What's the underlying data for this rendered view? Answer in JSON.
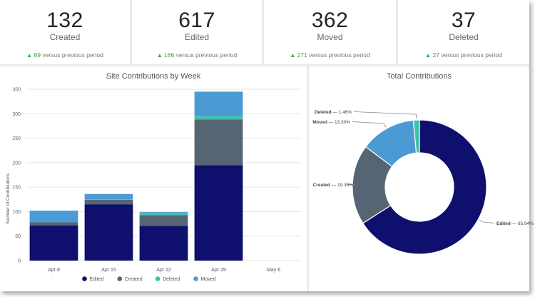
{
  "kpis": [
    {
      "value": "132",
      "label": "Created",
      "delta_value": "89",
      "delta_text": "versus previous period"
    },
    {
      "value": "617",
      "label": "Edited",
      "delta_value": "166",
      "delta_text": "versus previous period"
    },
    {
      "value": "362",
      "label": "Moved",
      "delta_value": "271",
      "delta_text": "versus previous period"
    },
    {
      "value": "37",
      "label": "Deleted",
      "delta_value": "27",
      "delta_text": "versus previous period"
    }
  ],
  "colors": {
    "Edited": "#0f0f6e",
    "Created": "#566573",
    "Deleted": "#3ec1aa",
    "Moved": "#4b9ad4"
  },
  "chart_data": [
    {
      "type": "bar",
      "stacked": true,
      "title": "Site Contributions by Week",
      "xlabel": "",
      "ylabel": "Number of Contributions",
      "ylim": [
        0,
        350
      ],
      "yticks": [
        0,
        50,
        100,
        150,
        200,
        250,
        300,
        350
      ],
      "categories": [
        "Apr 8",
        "Apr 15",
        "Apr 22",
        "Apr 29",
        "May 6"
      ],
      "series": [
        {
          "name": "Edited",
          "values": [
            72,
            115,
            71,
            195,
            0
          ]
        },
        {
          "name": "Created",
          "values": [
            6,
            9,
            22,
            93,
            0
          ]
        },
        {
          "name": "Deleted",
          "values": [
            0,
            1,
            3,
            7,
            0
          ]
        },
        {
          "name": "Moved",
          "values": [
            24,
            11,
            3,
            50,
            0
          ]
        }
      ],
      "legend": "bottom",
      "grid": true
    },
    {
      "type": "pie",
      "donut": true,
      "title": "Total Contributions",
      "slices": [
        {
          "name": "Edited",
          "value": 65.94,
          "label": "Edited — 65.94%"
        },
        {
          "name": "Created",
          "value": 19.3,
          "label": "Created — 19.30%"
        },
        {
          "name": "Moved",
          "value": 13.3,
          "label": "Moved — 13.30%"
        },
        {
          "name": "Deleted",
          "value": 1.46,
          "label": "Deleted — 1.46%"
        }
      ]
    }
  ]
}
